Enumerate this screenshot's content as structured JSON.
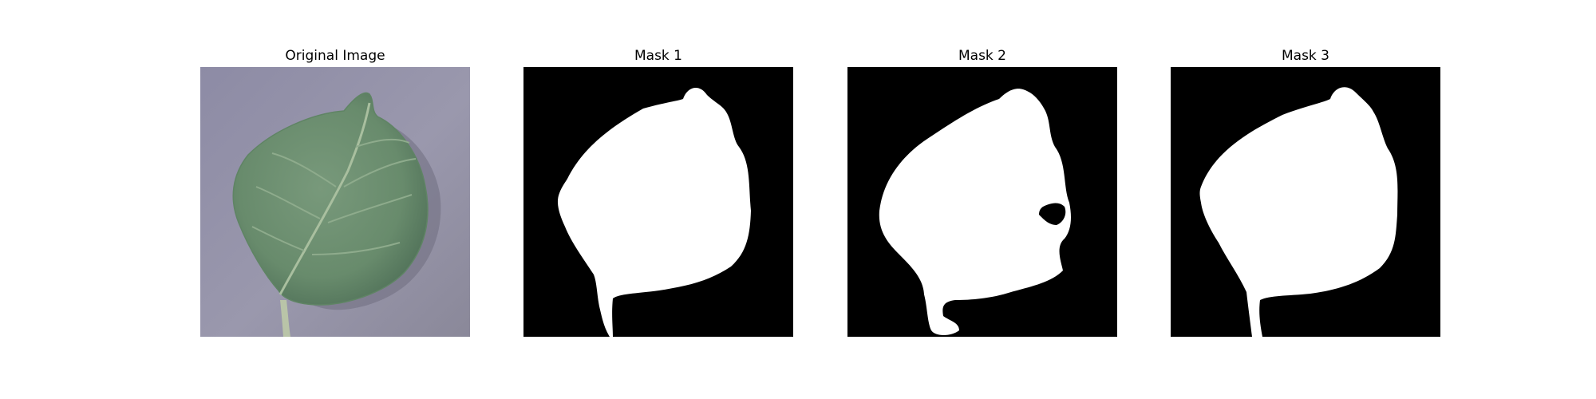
{
  "figure": {
    "panels": [
      {
        "title": "Original Image",
        "kind": "photo"
      },
      {
        "title": "Mask 1",
        "kind": "mask"
      },
      {
        "title": "Mask 2",
        "kind": "mask"
      },
      {
        "title": "Mask 3",
        "kind": "mask"
      }
    ]
  },
  "colors": {
    "background": "#ffffff",
    "mask_fg": "#ffffff",
    "mask_bg": "#000000",
    "leaf": "#6f9272",
    "leaf_dark": "#58795c",
    "surface": "#8f8ea3"
  }
}
